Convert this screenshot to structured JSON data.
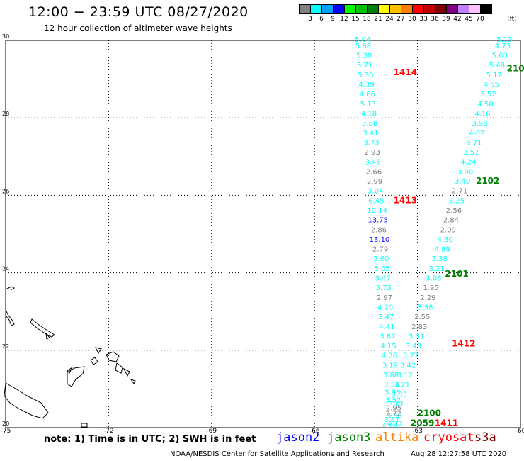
{
  "title": "12:00 − 23:59 UTC 08/27/2020",
  "subtitle": "12 hour collection of altimeter wave heights",
  "colorbar": {
    "unit": "(ft)",
    "colors": [
      "#808080",
      "#00ffff",
      "#00a0ff",
      "#0000ff",
      "#00ff00",
      "#00c000",
      "#008000",
      "#ffff00",
      "#ffc000",
      "#ff8000",
      "#ff0000",
      "#c00000",
      "#800000",
      "#800080",
      "#c080ff",
      "#ffc0ff",
      "#000000"
    ],
    "labels": [
      "3",
      "6",
      "9",
      "12",
      "15",
      "18",
      "21",
      "24",
      "27",
      "30",
      "33",
      "36",
      "39",
      "42",
      "45",
      "70"
    ]
  },
  "chart_data": {
    "type": "map-track",
    "xlim": [
      -75,
      -60
    ],
    "ylim": [
      20,
      30
    ],
    "xticks": [
      "-75",
      "-72",
      "-69",
      "-66",
      "-63",
      "-60"
    ],
    "yticks": [
      "30",
      "28",
      "26",
      "24",
      "22",
      "20"
    ],
    "pass_labels": [
      {
        "text": "1414",
        "color": "#ff0000",
        "lon": -63.7,
        "lat": 29.1
      },
      {
        "text": "1413",
        "color": "#ff0000",
        "lon": -63.7,
        "lat": 25.8
      },
      {
        "text": "1412",
        "color": "#ff0000",
        "lon": -62.0,
        "lat": 22.1
      },
      {
        "text": "1411",
        "color": "#ff0000",
        "lon": -62.5,
        "lat": 20.05
      },
      {
        "text": "210",
        "color": "#008000",
        "lon": -60.4,
        "lat": 29.2
      },
      {
        "text": "2102",
        "color": "#008000",
        "lon": -61.3,
        "lat": 26.3
      },
      {
        "text": "2101",
        "color": "#008000",
        "lon": -62.2,
        "lat": 23.9
      },
      {
        "text": "2100",
        "color": "#008000",
        "lon": -63.0,
        "lat": 20.3
      },
      {
        "text": "2059",
        "color": "#008000",
        "lon": -63.2,
        "lat": 20.05
      }
    ],
    "track_s3a": {
      "color": "#00ffff",
      "points": [
        {
          "lat": 29.96,
          "v": "5.04"
        },
        {
          "lat": 29.8,
          "v": "5.88"
        },
        {
          "lat": 29.55,
          "v": "5.30"
        },
        {
          "lat": 29.3,
          "v": "5.71"
        },
        {
          "lat": 29.05,
          "v": "5.30"
        },
        {
          "lat": 28.8,
          "v": "4.39"
        },
        {
          "lat": 28.55,
          "v": "4.66"
        },
        {
          "lat": 28.3,
          "v": "5.13"
        },
        {
          "lat": 28.05,
          "v": "4.18"
        },
        {
          "lat": 27.8,
          "v": "3.88"
        },
        {
          "lat": 27.55,
          "v": "3.41"
        },
        {
          "lat": 27.3,
          "v": "3.73"
        },
        {
          "lat": 27.05,
          "v": "2.93"
        },
        {
          "lat": 26.8,
          "v": "3.48"
        },
        {
          "lat": 26.55,
          "v": "2.66"
        },
        {
          "lat": 26.3,
          "v": "2.99"
        },
        {
          "lat": 26.05,
          "v": "3.04"
        },
        {
          "lat": 25.8,
          "v": "6.45"
        },
        {
          "lat": 25.55,
          "v": "10.14"
        },
        {
          "lat": 25.3,
          "v": "13.75"
        },
        {
          "lat": 25.05,
          "v": "2.86"
        },
        {
          "lat": 24.8,
          "v": "13.10"
        },
        {
          "lat": 24.55,
          "v": "2.79"
        },
        {
          "lat": 24.3,
          "v": "3.60"
        },
        {
          "lat": 24.05,
          "v": "5.05"
        },
        {
          "lat": 23.8,
          "v": "3.47"
        },
        {
          "lat": 23.55,
          "v": "3.73"
        },
        {
          "lat": 23.3,
          "v": "2.97"
        },
        {
          "lat": 23.05,
          "v": "4.20"
        },
        {
          "lat": 22.8,
          "v": "3.47"
        },
        {
          "lat": 22.55,
          "v": "4.41"
        },
        {
          "lat": 22.3,
          "v": "3.87"
        },
        {
          "lat": 22.05,
          "v": "4.15"
        },
        {
          "lat": 21.8,
          "v": "4.36"
        },
        {
          "lat": 21.55,
          "v": "3.19"
        },
        {
          "lat": 21.3,
          "v": "3.88"
        },
        {
          "lat": 21.05,
          "v": "3.36"
        },
        {
          "lat": 20.85,
          "v": "3.96"
        },
        {
          "lat": 20.65,
          "v": "3.52"
        },
        {
          "lat": 20.45,
          "v": "2.95"
        },
        {
          "lat": 20.25,
          "v": "3.56"
        },
        {
          "lat": 20.05,
          "v": "4.12"
        }
      ]
    },
    "track_j3": {
      "color": "#00ffff",
      "points": [
        {
          "lat": 29.96,
          "v": "5.13"
        },
        {
          "lat": 29.8,
          "v": "4.73"
        },
        {
          "lat": 29.55,
          "v": "5.63"
        },
        {
          "lat": 29.3,
          "v": "5.48"
        },
        {
          "lat": 29.05,
          "v": "5.17"
        },
        {
          "lat": 28.8,
          "v": "4.55"
        },
        {
          "lat": 28.55,
          "v": "5.52"
        },
        {
          "lat": 28.3,
          "v": "4.50"
        },
        {
          "lat": 28.05,
          "v": "4.16"
        },
        {
          "lat": 27.8,
          "v": "3.98"
        },
        {
          "lat": 27.55,
          "v": "4.02"
        },
        {
          "lat": 27.3,
          "v": "3.71"
        },
        {
          "lat": 27.05,
          "v": "3.57"
        },
        {
          "lat": 26.8,
          "v": "4.24"
        },
        {
          "lat": 26.55,
          "v": "3.90"
        },
        {
          "lat": 26.3,
          "v": "3.40"
        },
        {
          "lat": 26.05,
          "v": "2.71"
        },
        {
          "lat": 25.8,
          "v": "3.25"
        },
        {
          "lat": 25.55,
          "v": "2.56"
        },
        {
          "lat": 25.3,
          "v": "2.84"
        },
        {
          "lat": 25.05,
          "v": "2.09"
        },
        {
          "lat": 24.8,
          "v": "4.30"
        },
        {
          "lat": 24.55,
          "v": "4.89"
        },
        {
          "lat": 24.3,
          "v": "3.38"
        },
        {
          "lat": 24.05,
          "v": "3.21"
        },
        {
          "lat": 23.8,
          "v": "3.03"
        },
        {
          "lat": 23.55,
          "v": "1.95"
        },
        {
          "lat": 23.3,
          "v": "2.29"
        },
        {
          "lat": 23.05,
          "v": "3.38"
        },
        {
          "lat": 22.8,
          "v": "2.55"
        },
        {
          "lat": 22.55,
          "v": "2.83"
        },
        {
          "lat": 22.3,
          "v": "3.31"
        },
        {
          "lat": 22.05,
          "v": "3.43"
        },
        {
          "lat": 21.8,
          "v": "3.77"
        },
        {
          "lat": 21.55,
          "v": "3.42"
        },
        {
          "lat": 21.3,
          "v": "3.12"
        },
        {
          "lat": 21.05,
          "v": "3.21"
        },
        {
          "lat": 20.8,
          "v": "3.33"
        },
        {
          "lat": 20.55,
          "v": "3.01"
        },
        {
          "lat": 20.3,
          "v": "2.72"
        },
        {
          "lat": 20.15,
          "v": "3.87"
        },
        {
          "lat": 20.0,
          "v": "4.44"
        }
      ]
    }
  },
  "footer": {
    "note": "note:  1) Time is in UTC;  2) SWH is in feet",
    "satellites": [
      {
        "name": "jason2",
        "color": "#0000ff"
      },
      {
        "name": "jason3",
        "color": "#008000"
      },
      {
        "name": "altika",
        "color": "#ff8000"
      },
      {
        "name": "cryosat",
        "color": "#ff0000"
      },
      {
        "name": "s3a",
        "color": "#800000"
      }
    ],
    "credit": "NOAA/NESDIS Center for Satellite Applications and Research",
    "timestamp": "Aug 28 12:27:58 UTC 2020"
  }
}
